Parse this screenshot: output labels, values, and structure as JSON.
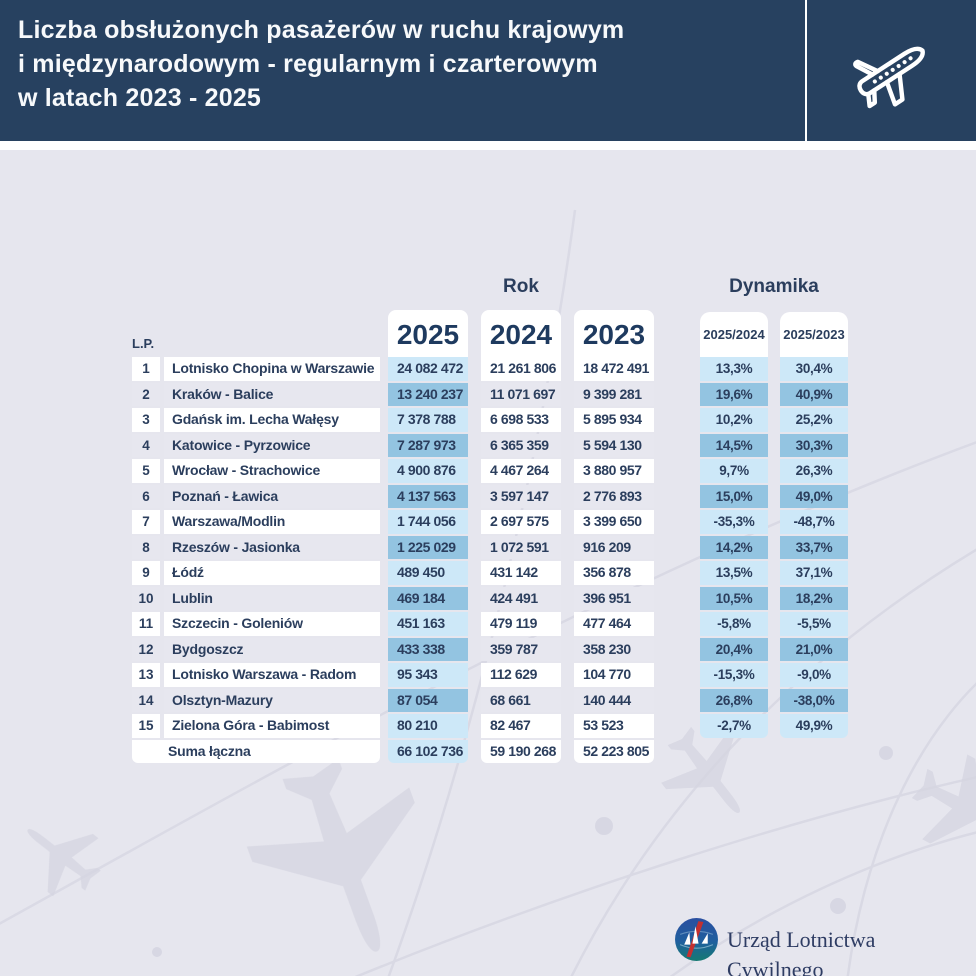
{
  "header": {
    "title_lines": [
      "Liczba obsłużonych pasażerów w ruchu krajowym",
      "i międzynarodowym - regularnym i czarterowym",
      "w latach 2023 - 2025"
    ]
  },
  "chart_data": {
    "type": "table",
    "title": "Liczba obsłużonych pasażerów w ruchu krajowym i międzynarodowym - regularnym i czarterowym w latach 2023 - 2025",
    "group_headers": {
      "rok": "Rok",
      "dynamika": "Dynamika"
    },
    "lp_label": "L.P.",
    "year_columns": [
      "2025",
      "2024",
      "2023"
    ],
    "dynamika_columns": [
      "2025/2024",
      "2025/2023"
    ],
    "rows": [
      {
        "lp": "1",
        "name": "Lotnisko Chopina w Warszawie",
        "values": [
          "24 082 472",
          "21 261 806",
          "18 472 491"
        ],
        "dynamics": [
          "13,3%",
          "30,4%"
        ]
      },
      {
        "lp": "2",
        "name": "Kraków - Balice",
        "values": [
          "13 240 237",
          "11 071 697",
          "9 399 281"
        ],
        "dynamics": [
          "19,6%",
          "40,9%"
        ]
      },
      {
        "lp": "3",
        "name": "Gdańsk im. Lecha Wałęsy",
        "values": [
          "7 378 788",
          "6 698 533",
          "5 895 934"
        ],
        "dynamics": [
          "10,2%",
          "25,2%"
        ]
      },
      {
        "lp": "4",
        "name": "Katowice - Pyrzowice",
        "values": [
          "7 287 973",
          "6 365 359",
          "5 594 130"
        ],
        "dynamics": [
          "14,5%",
          "30,3%"
        ]
      },
      {
        "lp": "5",
        "name": "Wrocław - Strachowice",
        "values": [
          "4 900 876",
          "4 467 264",
          "3 880 957"
        ],
        "dynamics": [
          "9,7%",
          "26,3%"
        ]
      },
      {
        "lp": "6",
        "name": "Poznań - Ławica",
        "values": [
          "4 137 563",
          "3 597 147",
          "2 776 893"
        ],
        "dynamics": [
          "15,0%",
          "49,0%"
        ]
      },
      {
        "lp": "7",
        "name": "Warszawa/Modlin",
        "values": [
          "1 744 056",
          "2 697 575",
          "3 399 650"
        ],
        "dynamics": [
          "-35,3%",
          "-48,7%"
        ]
      },
      {
        "lp": "8",
        "name": "Rzeszów - Jasionka",
        "values": [
          "1 225 029",
          "1 072 591",
          "916 209"
        ],
        "dynamics": [
          "14,2%",
          "33,7%"
        ]
      },
      {
        "lp": "9",
        "name": "Łódź",
        "values": [
          "489 450",
          "431 142",
          "356 878"
        ],
        "dynamics": [
          "13,5%",
          "37,1%"
        ]
      },
      {
        "lp": "10",
        "name": "Lublin",
        "values": [
          "469 184",
          "424 491",
          "396 951"
        ],
        "dynamics": [
          "10,5%",
          "18,2%"
        ]
      },
      {
        "lp": "11",
        "name": "Szczecin - Goleniów",
        "values": [
          "451 163",
          "479 119",
          "477 464"
        ],
        "dynamics": [
          "-5,8%",
          "-5,5%"
        ]
      },
      {
        "lp": "12",
        "name": "Bydgoszcz",
        "values": [
          "433 338",
          "359 787",
          "358 230"
        ],
        "dynamics": [
          "20,4%",
          "21,0%"
        ]
      },
      {
        "lp": "13",
        "name": "Lotnisko Warszawa - Radom",
        "values": [
          "95 343",
          "112 629",
          "104 770"
        ],
        "dynamics": [
          "-15,3%",
          "-9,0%"
        ]
      },
      {
        "lp": "14",
        "name": "Olsztyn-Mazury",
        "values": [
          "87 054",
          "68 661",
          "140 444"
        ],
        "dynamics": [
          "26,8%",
          "-38,0%"
        ]
      },
      {
        "lp": "15",
        "name": "Zielona Góra - Babimost",
        "values": [
          "80 210",
          "82 467",
          "53 523"
        ],
        "dynamics": [
          "-2,7%",
          "49,9%"
        ]
      }
    ],
    "total_row": {
      "name": "Suma łączna",
      "values": [
        "66 102 736",
        "59 190 268",
        "52 223 805"
      ]
    }
  },
  "footer": {
    "organization": "Urząd Lotnictwa Cywilnego"
  },
  "colors": {
    "header_bg": "#274160",
    "body_bg": "#e6e6ee",
    "navy_text": "#2b3e5d",
    "light_blue": "#cde8f8",
    "mid_blue": "#93c4e1",
    "row_gray": "#e7e7ef",
    "watermark": "#d9d9e4"
  }
}
